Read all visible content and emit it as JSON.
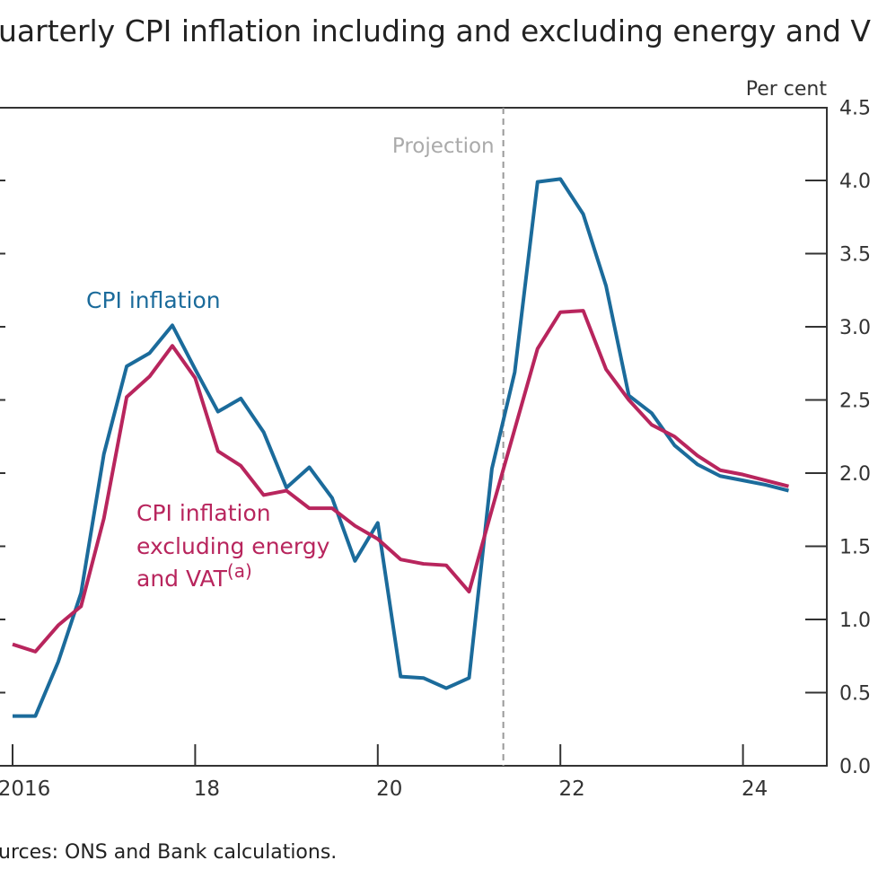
{
  "chart_data": {
    "type": "line",
    "title": "uarterly CPI inflation including and excluding energy and V",
    "source": "urces: ONS and Bank calculations.",
    "ylabel": "Per cent",
    "ylim": [
      0,
      4.5
    ],
    "yticks": [
      "0.0",
      "0.5",
      "1.0",
      "1.5",
      "2.0",
      "2.5",
      "3.0",
      "3.5",
      "4.0",
      "4.5"
    ],
    "xticks": [
      {
        "value": 2016,
        "label": "2016"
      },
      {
        "value": 2018,
        "label": "18"
      },
      {
        "value": 2020,
        "label": "20"
      },
      {
        "value": 2022,
        "label": "22"
      },
      {
        "value": 2024,
        "label": "24"
      }
    ],
    "grid": false,
    "projection": {
      "label": "Projection",
      "x": 2021.375
    },
    "x": [
      2016.0,
      2016.25,
      2016.5,
      2016.75,
      2017.0,
      2017.25,
      2017.5,
      2017.75,
      2018.0,
      2018.25,
      2018.5,
      2018.75,
      2019.0,
      2019.25,
      2019.5,
      2019.75,
      2020.0,
      2020.25,
      2020.5,
      2020.75,
      2021.0,
      2021.25,
      2021.5,
      2021.75,
      2022.0,
      2022.25,
      2022.5,
      2022.75,
      2023.0,
      2023.25,
      2023.5,
      2023.75,
      2024.0,
      2024.25,
      2024.5
    ],
    "series": [
      {
        "name": "CPI inflation",
        "color": "#1b6b9b",
        "values": [
          0.34,
          0.34,
          0.71,
          1.18,
          2.13,
          2.73,
          2.82,
          3.01,
          2.71,
          2.42,
          2.51,
          2.28,
          1.9,
          2.04,
          1.83,
          1.4,
          1.66,
          0.61,
          0.6,
          0.53,
          0.6,
          2.03,
          2.69,
          3.99,
          4.01,
          3.77,
          3.28,
          2.53,
          2.41,
          2.19,
          2.06,
          1.98,
          1.95,
          1.92,
          1.88
        ]
      },
      {
        "name": "CPI inflation excluding energy and VAT(a)",
        "name_lines": [
          "CPI inflation",
          "excluding energy",
          "and VAT"
        ],
        "name_superscript": "(a)",
        "color": "#b8255d",
        "values": [
          0.83,
          0.78,
          0.96,
          1.09,
          1.69,
          2.52,
          2.66,
          2.87,
          2.65,
          2.15,
          2.05,
          1.85,
          1.88,
          1.76,
          1.76,
          1.64,
          1.55,
          1.41,
          1.38,
          1.37,
          1.19,
          1.75,
          2.3,
          2.85,
          3.1,
          3.11,
          2.71,
          2.5,
          2.33,
          2.25,
          2.12,
          2.02,
          1.99,
          1.95,
          1.91
        ]
      }
    ]
  }
}
